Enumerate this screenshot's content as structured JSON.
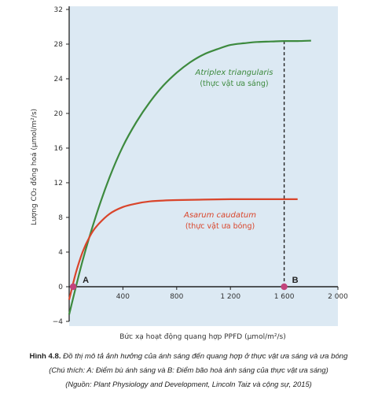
{
  "chart_data": {
    "type": "line",
    "title": "",
    "xlabel": "Bức xạ hoạt động quang hợp PPFD (µmol/m²/s)",
    "ylabel": "Lượng CO₂ đồng hoá (µmol/m²/s)",
    "xlim": [
      0,
      2000
    ],
    "ylim": [
      -4,
      32
    ],
    "xticks": [
      400,
      800,
      1200,
      1600,
      2000
    ],
    "xtick_labels": [
      "400",
      "800",
      "1 200",
      "1 600",
      "2 000"
    ],
    "yticks": [
      -4,
      0,
      4,
      8,
      12,
      16,
      20,
      24,
      28,
      32
    ],
    "ytick_labels": [
      "−4",
      "0",
      "4",
      "8",
      "12",
      "16",
      "20",
      "24",
      "28",
      "32"
    ],
    "series": [
      {
        "name": "Atriplex triangularis",
        "subtitle": "(thực vật ưa sáng)",
        "color": "#3d8a3e",
        "x": [
          0,
          100,
          200,
          300,
          400,
          500,
          600,
          700,
          800,
          900,
          1000,
          1100,
          1200,
          1300,
          1400,
          1500,
          1600,
          1700,
          1800
        ],
        "y": [
          -3.2,
          3.0,
          8.2,
          12.6,
          16.2,
          19.0,
          21.3,
          23.2,
          24.7,
          25.9,
          26.8,
          27.4,
          27.9,
          28.1,
          28.25,
          28.3,
          28.35,
          28.35,
          28.4
        ]
      },
      {
        "name": "Asarum caudatum",
        "subtitle": "(thực vật ưa bóng)",
        "color": "#d9452b",
        "x": [
          0,
          50,
          100,
          150,
          200,
          300,
          400,
          500,
          600,
          700,
          800,
          1000,
          1200,
          1400,
          1600,
          1700
        ],
        "y": [
          -1.5,
          1.6,
          4.0,
          5.7,
          6.9,
          8.4,
          9.2,
          9.6,
          9.85,
          9.95,
          10.0,
          10.05,
          10.1,
          10.1,
          10.1,
          10.1
        ]
      }
    ],
    "points": [
      {
        "label": "A",
        "x": 30,
        "y": 0
      },
      {
        "label": "B",
        "x": 1600,
        "y": 0
      }
    ],
    "dashed_line_x": 1600
  },
  "caption": {
    "title_bold": "Hình 4.8.",
    "title_rest": " Đồ thị mô tả ảnh hưởng của ánh sáng đến quang hợp ở thực vật ưa sáng và ưa bóng",
    "note": "(Chú thích: A: Điểm bù ánh sáng và B: Điểm bão hoà ánh sáng của thực vật ưa sáng)",
    "source": "(Nguồn: Plant Physiology and Development, Lincoln Taiz và cộng sự, 2015)"
  },
  "colors": {
    "plot_bg": "#dce9f3",
    "axis": "#222222",
    "point": "#c2437c"
  }
}
